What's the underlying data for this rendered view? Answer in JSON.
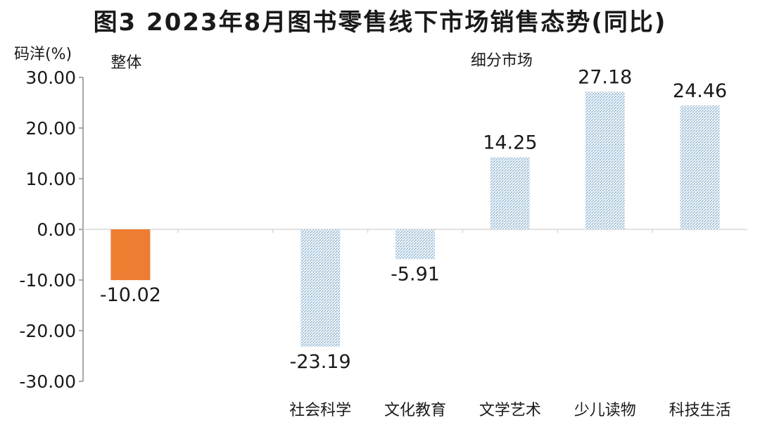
{
  "title": "图3  2023年8月图书零售线下市场销售态势(同比)",
  "chart_data": {
    "type": "bar",
    "ylabel": "码洋(%)",
    "ylim": [
      -30,
      30
    ],
    "yticks": [
      "30.00",
      "20.00",
      "10.00",
      "0.00",
      "-10.00",
      "-20.00",
      "-30.00"
    ],
    "groups": [
      {
        "label": "整体",
        "categories": [
          ""
        ]
      },
      {
        "label": "细分市场",
        "categories": [
          "社会科学",
          "文化教育",
          "文学艺术",
          "少儿读物",
          "科技生活"
        ]
      }
    ],
    "categories": [
      "",
      "",
      "社会科学",
      "文化教育",
      "文学艺术",
      "少儿读物",
      "科技生活"
    ],
    "values": [
      -10.02,
      null,
      -23.19,
      -5.91,
      14.25,
      27.18,
      24.46
    ],
    "value_labels": [
      "-10.02",
      "",
      "-23.19",
      "-5.91",
      "14.25",
      "27.18",
      "24.46"
    ],
    "colors": {
      "overall": "#ed7d31",
      "segment": "#b7cde0",
      "axis": "#8c8c8c",
      "grid": "#d9d9d9"
    }
  }
}
